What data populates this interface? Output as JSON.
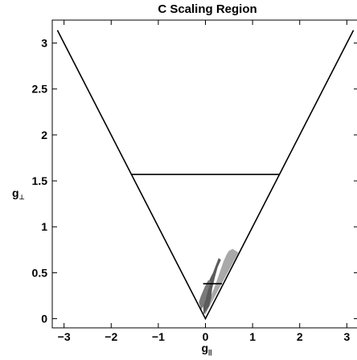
{
  "chart_data": {
    "type": "line",
    "title": "C Scaling Region",
    "xlabel": {
      "main": "g",
      "sub": "||"
    },
    "ylabel": {
      "main": "g",
      "sub": "⊥"
    },
    "xlim": [
      -3.25,
      3.25
    ],
    "ylim": [
      -0.1,
      3.25
    ],
    "x_ticks": [
      -3,
      -2,
      -1,
      0,
      1,
      2,
      3
    ],
    "x_tick_labels": [
      "−3",
      "−2",
      "−1",
      "0",
      "1",
      "2",
      "3"
    ],
    "y_ticks": [
      0,
      0.5,
      1,
      1.5,
      2,
      2.5,
      3
    ],
    "y_tick_labels": [
      "0",
      "0.5",
      "1",
      "1.5",
      "2",
      "2.5",
      "3"
    ],
    "grid": false,
    "series": [
      {
        "points": [
          [
            -3.14,
            3.14
          ],
          [
            0,
            0
          ],
          [
            3.14,
            3.14
          ]
        ],
        "color": "#000000"
      },
      {
        "points": [
          [
            -1.57,
            1.57
          ],
          [
            1.57,
            1.57
          ]
        ],
        "color": "#000000"
      },
      {
        "points": [
          [
            -0.05,
            0.38
          ],
          [
            0.35,
            0.38
          ]
        ],
        "color": "#000000"
      }
    ],
    "regions": [
      {
        "color": "#a9a9a9",
        "points": [
          [
            -0.05,
            0.06
          ],
          [
            0.0,
            0.05
          ],
          [
            0.7,
            0.72
          ],
          [
            0.58,
            0.76
          ],
          [
            0.5,
            0.74
          ],
          [
            0.45,
            0.7
          ],
          [
            0.38,
            0.62
          ],
          [
            0.3,
            0.5
          ],
          [
            0.22,
            0.38
          ],
          [
            0.12,
            0.25
          ],
          [
            0.02,
            0.12
          ]
        ]
      },
      {
        "color": "#5b5b5b",
        "points": [
          [
            -0.04,
            0.05
          ],
          [
            0.02,
            0.09
          ],
          [
            0.08,
            0.14
          ],
          [
            0.12,
            0.22
          ],
          [
            0.14,
            0.32
          ],
          [
            0.2,
            0.45
          ],
          [
            0.26,
            0.56
          ],
          [
            0.33,
            0.64
          ],
          [
            0.28,
            0.66
          ],
          [
            0.22,
            0.58
          ],
          [
            0.16,
            0.5
          ],
          [
            0.1,
            0.44
          ],
          [
            0.04,
            0.36
          ],
          [
            -0.02,
            0.3
          ],
          [
            -0.08,
            0.26
          ],
          [
            -0.05,
            0.16
          ]
        ]
      },
      {
        "color": "#7a7a7a",
        "points": [
          [
            -0.09,
            0.1
          ],
          [
            -0.04,
            0.14
          ],
          [
            0.0,
            0.2
          ],
          [
            0.06,
            0.32
          ],
          [
            0.12,
            0.4
          ],
          [
            0.06,
            0.42
          ],
          [
            -0.02,
            0.34
          ],
          [
            -0.1,
            0.24
          ],
          [
            -0.14,
            0.18
          ]
        ]
      }
    ]
  }
}
